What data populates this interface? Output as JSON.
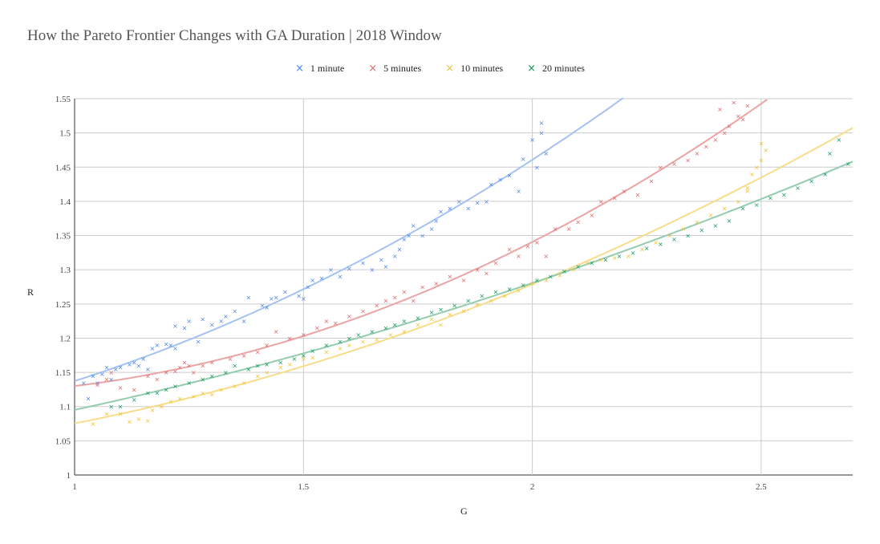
{
  "chart_data": {
    "type": "scatter",
    "title": "How the Pareto Frontier Changes with GA Duration | 2018 Window",
    "xlabel": "G",
    "ylabel": "R",
    "xlim": [
      1,
      2.7
    ],
    "ylim": [
      1,
      1.55
    ],
    "x_ticks": [
      "1",
      "1.5",
      "2",
      "2.5"
    ],
    "y_ticks": [
      "1",
      "1.05",
      "1.1",
      "1.15",
      "1.2",
      "1.25",
      "1.3",
      "1.35",
      "1.4",
      "1.45",
      "1.5",
      "1.55"
    ],
    "grid": true,
    "legend_position": "top-center",
    "marker": "×",
    "trendlines": "polynomial",
    "series": [
      {
        "name": "1 minute",
        "color": "#4a86e8",
        "trend_color": "#a4c2f4",
        "points": [
          [
            1.02,
            1.135
          ],
          [
            1.03,
            1.112
          ],
          [
            1.04,
            1.145
          ],
          [
            1.05,
            1.135
          ],
          [
            1.06,
            1.148
          ],
          [
            1.07,
            1.158
          ],
          [
            1.08,
            1.14
          ],
          [
            1.09,
            1.155
          ],
          [
            1.1,
            1.158
          ],
          [
            1.12,
            1.162
          ],
          [
            1.13,
            1.165
          ],
          [
            1.14,
            1.16
          ],
          [
            1.15,
            1.17
          ],
          [
            1.16,
            1.155
          ],
          [
            1.17,
            1.185
          ],
          [
            1.18,
            1.19
          ],
          [
            1.2,
            1.192
          ],
          [
            1.21,
            1.19
          ],
          [
            1.22,
            1.185
          ],
          [
            1.22,
            1.218
          ],
          [
            1.24,
            1.215
          ],
          [
            1.25,
            1.225
          ],
          [
            1.27,
            1.195
          ],
          [
            1.28,
            1.228
          ],
          [
            1.3,
            1.22
          ],
          [
            1.32,
            1.225
          ],
          [
            1.33,
            1.232
          ],
          [
            1.35,
            1.24
          ],
          [
            1.37,
            1.225
          ],
          [
            1.38,
            1.26
          ],
          [
            1.41,
            1.248
          ],
          [
            1.42,
            1.245
          ],
          [
            1.43,
            1.258
          ],
          [
            1.44,
            1.26
          ],
          [
            1.46,
            1.268
          ],
          [
            1.49,
            1.262
          ],
          [
            1.5,
            1.258
          ],
          [
            1.51,
            1.275
          ],
          [
            1.52,
            1.285
          ],
          [
            1.54,
            1.288
          ],
          [
            1.56,
            1.3
          ],
          [
            1.58,
            1.29
          ],
          [
            1.6,
            1.302
          ],
          [
            1.63,
            1.31
          ],
          [
            1.65,
            1.3
          ],
          [
            1.67,
            1.315
          ],
          [
            1.68,
            1.305
          ],
          [
            1.7,
            1.32
          ],
          [
            1.71,
            1.33
          ],
          [
            1.72,
            1.345
          ],
          [
            1.73,
            1.35
          ],
          [
            1.74,
            1.365
          ],
          [
            1.76,
            1.35
          ],
          [
            1.78,
            1.36
          ],
          [
            1.79,
            1.372
          ],
          [
            1.8,
            1.385
          ],
          [
            1.82,
            1.39
          ],
          [
            1.84,
            1.4
          ],
          [
            1.86,
            1.39
          ],
          [
            1.88,
            1.398
          ],
          [
            1.9,
            1.4
          ],
          [
            1.91,
            1.425
          ],
          [
            1.93,
            1.432
          ],
          [
            1.95,
            1.438
          ],
          [
            1.97,
            1.415
          ],
          [
            1.98,
            1.462
          ],
          [
            2.0,
            1.49
          ],
          [
            2.01,
            1.45
          ],
          [
            2.02,
            1.5
          ],
          [
            2.03,
            1.47
          ],
          [
            2.02,
            1.515
          ]
        ]
      },
      {
        "name": "5 minutes",
        "color": "#e06666",
        "trend_color": "#eaa4a4",
        "points": [
          [
            1.05,
            1.132
          ],
          [
            1.07,
            1.14
          ],
          [
            1.08,
            1.15
          ],
          [
            1.1,
            1.128
          ],
          [
            1.13,
            1.125
          ],
          [
            1.16,
            1.145
          ],
          [
            1.18,
            1.14
          ],
          [
            1.2,
            1.15
          ],
          [
            1.22,
            1.152
          ],
          [
            1.23,
            1.158
          ],
          [
            1.24,
            1.165
          ],
          [
            1.25,
            1.16
          ],
          [
            1.26,
            1.15
          ],
          [
            1.28,
            1.16
          ],
          [
            1.3,
            1.165
          ],
          [
            1.34,
            1.17
          ],
          [
            1.37,
            1.175
          ],
          [
            1.4,
            1.18
          ],
          [
            1.42,
            1.19
          ],
          [
            1.44,
            1.21
          ],
          [
            1.47,
            1.2
          ],
          [
            1.5,
            1.205
          ],
          [
            1.53,
            1.215
          ],
          [
            1.55,
            1.225
          ],
          [
            1.57,
            1.222
          ],
          [
            1.6,
            1.232
          ],
          [
            1.63,
            1.24
          ],
          [
            1.66,
            1.248
          ],
          [
            1.68,
            1.255
          ],
          [
            1.7,
            1.26
          ],
          [
            1.72,
            1.268
          ],
          [
            1.74,
            1.255
          ],
          [
            1.76,
            1.275
          ],
          [
            1.79,
            1.28
          ],
          [
            1.82,
            1.29
          ],
          [
            1.85,
            1.285
          ],
          [
            1.88,
            1.3
          ],
          [
            1.9,
            1.295
          ],
          [
            1.92,
            1.31
          ],
          [
            1.95,
            1.33
          ],
          [
            1.97,
            1.32
          ],
          [
            1.99,
            1.335
          ],
          [
            2.01,
            1.34
          ],
          [
            2.03,
            1.32
          ],
          [
            2.05,
            1.36
          ],
          [
            2.08,
            1.36
          ],
          [
            2.1,
            1.37
          ],
          [
            2.13,
            1.38
          ],
          [
            2.15,
            1.4
          ],
          [
            2.18,
            1.405
          ],
          [
            2.2,
            1.415
          ],
          [
            2.23,
            1.41
          ],
          [
            2.26,
            1.43
          ],
          [
            2.28,
            1.45
          ],
          [
            2.31,
            1.455
          ],
          [
            2.34,
            1.46
          ],
          [
            2.36,
            1.47
          ],
          [
            2.38,
            1.48
          ],
          [
            2.4,
            1.49
          ],
          [
            2.42,
            1.5
          ],
          [
            2.43,
            1.51
          ],
          [
            2.45,
            1.525
          ],
          [
            2.46,
            1.52
          ],
          [
            2.47,
            1.54
          ],
          [
            2.44,
            1.545
          ],
          [
            2.41,
            1.535
          ]
        ]
      },
      {
        "name": "10 minutes",
        "color": "#f1c232",
        "trend_color": "#f9dc8a",
        "points": [
          [
            1.04,
            1.075
          ],
          [
            1.07,
            1.09
          ],
          [
            1.1,
            1.09
          ],
          [
            1.12,
            1.078
          ],
          [
            1.14,
            1.082
          ],
          [
            1.16,
            1.08
          ],
          [
            1.17,
            1.095
          ],
          [
            1.19,
            1.1
          ],
          [
            1.21,
            1.108
          ],
          [
            1.23,
            1.112
          ],
          [
            1.26,
            1.115
          ],
          [
            1.28,
            1.12
          ],
          [
            1.3,
            1.118
          ],
          [
            1.32,
            1.125
          ],
          [
            1.35,
            1.13
          ],
          [
            1.37,
            1.135
          ],
          [
            1.4,
            1.145
          ],
          [
            1.42,
            1.15
          ],
          [
            1.45,
            1.158
          ],
          [
            1.47,
            1.162
          ],
          [
            1.5,
            1.17
          ],
          [
            1.52,
            1.172
          ],
          [
            1.55,
            1.18
          ],
          [
            1.58,
            1.185
          ],
          [
            1.6,
            1.19
          ],
          [
            1.63,
            1.195
          ],
          [
            1.66,
            1.198
          ],
          [
            1.69,
            1.205
          ],
          [
            1.72,
            1.21
          ],
          [
            1.75,
            1.22
          ],
          [
            1.78,
            1.228
          ],
          [
            1.8,
            1.22
          ],
          [
            1.82,
            1.235
          ],
          [
            1.85,
            1.24
          ],
          [
            1.88,
            1.25
          ],
          [
            1.91,
            1.255
          ],
          [
            1.94,
            1.262
          ],
          [
            1.97,
            1.27
          ],
          [
            2.0,
            1.28
          ],
          [
            2.03,
            1.285
          ],
          [
            2.06,
            1.292
          ],
          [
            2.09,
            1.3
          ],
          [
            2.12,
            1.31
          ],
          [
            2.15,
            1.315
          ],
          [
            2.18,
            1.318
          ],
          [
            2.21,
            1.32
          ],
          [
            2.24,
            1.33
          ],
          [
            2.27,
            1.34
          ],
          [
            2.3,
            1.35
          ],
          [
            2.33,
            1.36
          ],
          [
            2.36,
            1.37
          ],
          [
            2.39,
            1.38
          ],
          [
            2.42,
            1.39
          ],
          [
            2.45,
            1.4
          ],
          [
            2.47,
            1.415
          ],
          [
            2.48,
            1.44
          ],
          [
            2.49,
            1.45
          ],
          [
            2.5,
            1.46
          ],
          [
            2.51,
            1.475
          ],
          [
            2.5,
            1.485
          ],
          [
            2.47,
            1.42
          ]
        ]
      },
      {
        "name": "20 minutes",
        "color": "#0f9d58",
        "trend_color": "#93ccae",
        "points": [
          [
            1.08,
            1.1
          ],
          [
            1.1,
            1.1
          ],
          [
            1.13,
            1.11
          ],
          [
            1.16,
            1.12
          ],
          [
            1.18,
            1.12
          ],
          [
            1.2,
            1.125
          ],
          [
            1.22,
            1.13
          ],
          [
            1.25,
            1.135
          ],
          [
            1.28,
            1.14
          ],
          [
            1.3,
            1.145
          ],
          [
            1.33,
            1.15
          ],
          [
            1.35,
            1.16
          ],
          [
            1.38,
            1.155
          ],
          [
            1.4,
            1.16
          ],
          [
            1.42,
            1.162
          ],
          [
            1.45,
            1.165
          ],
          [
            1.48,
            1.17
          ],
          [
            1.5,
            1.175
          ],
          [
            1.52,
            1.182
          ],
          [
            1.55,
            1.19
          ],
          [
            1.58,
            1.195
          ],
          [
            1.6,
            1.2
          ],
          [
            1.62,
            1.205
          ],
          [
            1.65,
            1.21
          ],
          [
            1.68,
            1.215
          ],
          [
            1.7,
            1.22
          ],
          [
            1.72,
            1.225
          ],
          [
            1.75,
            1.23
          ],
          [
            1.78,
            1.238
          ],
          [
            1.8,
            1.242
          ],
          [
            1.83,
            1.248
          ],
          [
            1.86,
            1.255
          ],
          [
            1.89,
            1.262
          ],
          [
            1.92,
            1.268
          ],
          [
            1.95,
            1.272
          ],
          [
            1.98,
            1.278
          ],
          [
            2.01,
            1.285
          ],
          [
            2.04,
            1.29
          ],
          [
            2.07,
            1.298
          ],
          [
            2.1,
            1.305
          ],
          [
            2.13,
            1.31
          ],
          [
            2.16,
            1.315
          ],
          [
            2.19,
            1.32
          ],
          [
            2.22,
            1.325
          ],
          [
            2.25,
            1.332
          ],
          [
            2.28,
            1.338
          ],
          [
            2.31,
            1.345
          ],
          [
            2.34,
            1.35
          ],
          [
            2.37,
            1.358
          ],
          [
            2.4,
            1.365
          ],
          [
            2.43,
            1.372
          ],
          [
            2.46,
            1.39
          ],
          [
            2.49,
            1.395
          ],
          [
            2.52,
            1.405
          ],
          [
            2.55,
            1.41
          ],
          [
            2.58,
            1.42
          ],
          [
            2.61,
            1.43
          ],
          [
            2.64,
            1.44
          ],
          [
            2.67,
            1.49
          ],
          [
            2.69,
            1.455
          ],
          [
            2.65,
            1.47
          ]
        ]
      }
    ]
  }
}
